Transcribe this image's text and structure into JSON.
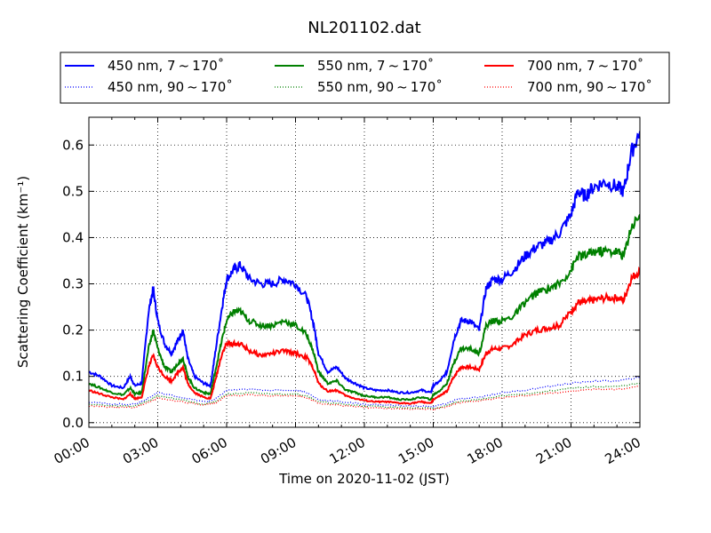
{
  "chart_data": {
    "type": "line",
    "title": "NL201102.dat",
    "xlabel": "Time on 2020-11-02 (JST)",
    "ylabel": "Scattering Coefficient (km⁻¹)",
    "x_ticks": [
      "00:00",
      "03:00",
      "06:00",
      "09:00",
      "12:00",
      "15:00",
      "18:00",
      "21:00",
      "24:00"
    ],
    "x_range_hours": [
      0,
      24
    ],
    "y_ticks": [
      "0.0",
      "0.1",
      "0.2",
      "0.3",
      "0.4",
      "0.5",
      "0.6"
    ],
    "ylim": [
      -0.01,
      0.66
    ],
    "grid": true,
    "legend_position": "top",
    "series": [
      {
        "name": "450 nm, 7 ~ 170˚",
        "color": "#0000ff",
        "style": "solid",
        "x": [
          0,
          0.5,
          1,
          1.5,
          1.8,
          2,
          2.3,
          2.6,
          2.8,
          3,
          3.3,
          3.6,
          3.9,
          4.1,
          4.3,
          4.6,
          5,
          5.3,
          5.5,
          5.8,
          6,
          6.3,
          6.6,
          7,
          7.5,
          8,
          8.5,
          9,
          9.5,
          9.8,
          10,
          10.4,
          10.8,
          11.2,
          11.6,
          12,
          12.5,
          13,
          13.5,
          14,
          14.5,
          14.9,
          15,
          15.3,
          15.6,
          15.9,
          16.2,
          16.6,
          17,
          17.3,
          17.6,
          18,
          18.5,
          19,
          19.5,
          20,
          20.5,
          21,
          21.3,
          21.6,
          22,
          22.5,
          23,
          23.3,
          23.6,
          24
        ],
        "y": [
          0.11,
          0.1,
          0.08,
          0.075,
          0.1,
          0.08,
          0.085,
          0.24,
          0.29,
          0.22,
          0.17,
          0.15,
          0.18,
          0.2,
          0.14,
          0.1,
          0.085,
          0.08,
          0.15,
          0.25,
          0.31,
          0.33,
          0.34,
          0.31,
          0.3,
          0.3,
          0.31,
          0.3,
          0.27,
          0.21,
          0.15,
          0.11,
          0.12,
          0.095,
          0.085,
          0.075,
          0.07,
          0.07,
          0.065,
          0.065,
          0.07,
          0.065,
          0.08,
          0.09,
          0.11,
          0.18,
          0.22,
          0.22,
          0.2,
          0.29,
          0.31,
          0.31,
          0.33,
          0.36,
          0.38,
          0.39,
          0.41,
          0.45,
          0.5,
          0.49,
          0.51,
          0.52,
          0.51,
          0.5,
          0.58,
          0.63
        ]
      },
      {
        "name": "550 nm, 7 ~ 170˚",
        "color": "#008000",
        "style": "solid",
        "x": [
          0,
          0.5,
          1,
          1.5,
          1.8,
          2,
          2.3,
          2.6,
          2.8,
          3,
          3.3,
          3.6,
          3.9,
          4.1,
          4.3,
          4.6,
          5,
          5.3,
          5.5,
          5.8,
          6,
          6.3,
          6.6,
          7,
          7.5,
          8,
          8.5,
          9,
          9.5,
          9.8,
          10,
          10.4,
          10.8,
          11.2,
          11.6,
          12,
          12.5,
          13,
          13.5,
          14,
          14.5,
          14.9,
          15,
          15.3,
          15.6,
          15.9,
          16.2,
          16.6,
          17,
          17.3,
          17.6,
          18,
          18.5,
          19,
          19.5,
          20,
          20.5,
          21,
          21.3,
          21.6,
          22,
          22.5,
          23,
          23.3,
          23.6,
          24
        ],
        "y": [
          0.085,
          0.075,
          0.065,
          0.06,
          0.075,
          0.062,
          0.065,
          0.16,
          0.2,
          0.16,
          0.12,
          0.11,
          0.13,
          0.14,
          0.1,
          0.075,
          0.065,
          0.062,
          0.11,
          0.18,
          0.22,
          0.24,
          0.24,
          0.22,
          0.21,
          0.21,
          0.22,
          0.21,
          0.19,
          0.15,
          0.11,
          0.085,
          0.09,
          0.07,
          0.065,
          0.058,
          0.055,
          0.055,
          0.05,
          0.05,
          0.055,
          0.05,
          0.06,
          0.07,
          0.085,
          0.13,
          0.16,
          0.16,
          0.15,
          0.21,
          0.22,
          0.22,
          0.23,
          0.26,
          0.28,
          0.29,
          0.3,
          0.33,
          0.36,
          0.36,
          0.37,
          0.37,
          0.37,
          0.36,
          0.42,
          0.45
        ]
      },
      {
        "name": "700 nm, 7 ~ 170˚",
        "color": "#ff0000",
        "style": "solid",
        "x": [
          0,
          0.5,
          1,
          1.5,
          1.8,
          2,
          2.3,
          2.6,
          2.8,
          3,
          3.3,
          3.6,
          3.9,
          4.1,
          4.3,
          4.6,
          5,
          5.3,
          5.5,
          5.8,
          6,
          6.3,
          6.6,
          7,
          7.5,
          8,
          8.5,
          9,
          9.5,
          9.8,
          10,
          10.4,
          10.8,
          11.2,
          11.6,
          12,
          12.5,
          13,
          13.5,
          14,
          14.5,
          14.9,
          15,
          15.3,
          15.6,
          15.9,
          16.2,
          16.6,
          17,
          17.3,
          17.6,
          18,
          18.5,
          19,
          19.5,
          20,
          20.5,
          21,
          21.3,
          21.6,
          22,
          22.5,
          23,
          23.3,
          23.6,
          24
        ],
        "y": [
          0.07,
          0.062,
          0.055,
          0.05,
          0.062,
          0.052,
          0.055,
          0.12,
          0.145,
          0.12,
          0.1,
          0.09,
          0.11,
          0.12,
          0.085,
          0.065,
          0.055,
          0.052,
          0.09,
          0.15,
          0.17,
          0.17,
          0.17,
          0.155,
          0.145,
          0.15,
          0.155,
          0.15,
          0.14,
          0.115,
          0.085,
          0.068,
          0.07,
          0.058,
          0.052,
          0.048,
          0.045,
          0.045,
          0.042,
          0.042,
          0.045,
          0.042,
          0.05,
          0.058,
          0.068,
          0.1,
          0.12,
          0.12,
          0.115,
          0.15,
          0.16,
          0.16,
          0.17,
          0.19,
          0.2,
          0.205,
          0.21,
          0.24,
          0.26,
          0.26,
          0.265,
          0.27,
          0.27,
          0.265,
          0.31,
          0.33
        ]
      },
      {
        "name": "450 nm, 90 ~ 170˚",
        "color": "#0000ff",
        "style": "dotted",
        "x": [
          0,
          1,
          2,
          2.5,
          3,
          4,
          5,
          5.5,
          6,
          7,
          8,
          9,
          9.5,
          10,
          11,
          12,
          13,
          14,
          15,
          15.5,
          16,
          17,
          18,
          19,
          20,
          21,
          22,
          23,
          24
        ],
        "y": [
          0.045,
          0.04,
          0.04,
          0.05,
          0.065,
          0.055,
          0.045,
          0.05,
          0.07,
          0.072,
          0.07,
          0.07,
          0.065,
          0.05,
          0.045,
          0.04,
          0.038,
          0.036,
          0.035,
          0.04,
          0.05,
          0.055,
          0.065,
          0.07,
          0.078,
          0.085,
          0.09,
          0.09,
          0.098
        ]
      },
      {
        "name": "550 nm, 90 ~ 170˚",
        "color": "#008000",
        "style": "dotted",
        "x": [
          0,
          1,
          2,
          2.5,
          3,
          4,
          5,
          5.5,
          6,
          7,
          8,
          9,
          9.5,
          10,
          11,
          12,
          13,
          14,
          15,
          15.5,
          16,
          17,
          18,
          19,
          20,
          21,
          22,
          23,
          24
        ],
        "y": [
          0.04,
          0.036,
          0.036,
          0.045,
          0.058,
          0.05,
          0.04,
          0.045,
          0.062,
          0.064,
          0.062,
          0.062,
          0.058,
          0.045,
          0.04,
          0.036,
          0.034,
          0.032,
          0.031,
          0.035,
          0.045,
          0.05,
          0.058,
          0.062,
          0.068,
          0.074,
          0.078,
          0.078,
          0.085
        ]
      },
      {
        "name": "700 nm, 90 ~ 170˚",
        "color": "#ff0000",
        "style": "dotted",
        "x": [
          0,
          1,
          2,
          2.5,
          3,
          4,
          5,
          5.5,
          6,
          7,
          8,
          9,
          9.5,
          10,
          11,
          12,
          13,
          14,
          15,
          15.5,
          16,
          17,
          18,
          19,
          20,
          21,
          22,
          23,
          24
        ],
        "y": [
          0.036,
          0.033,
          0.033,
          0.042,
          0.053,
          0.046,
          0.037,
          0.042,
          0.058,
          0.06,
          0.058,
          0.058,
          0.054,
          0.042,
          0.037,
          0.033,
          0.031,
          0.03,
          0.029,
          0.033,
          0.042,
          0.047,
          0.054,
          0.058,
          0.063,
          0.068,
          0.072,
          0.072,
          0.078
        ]
      }
    ]
  }
}
